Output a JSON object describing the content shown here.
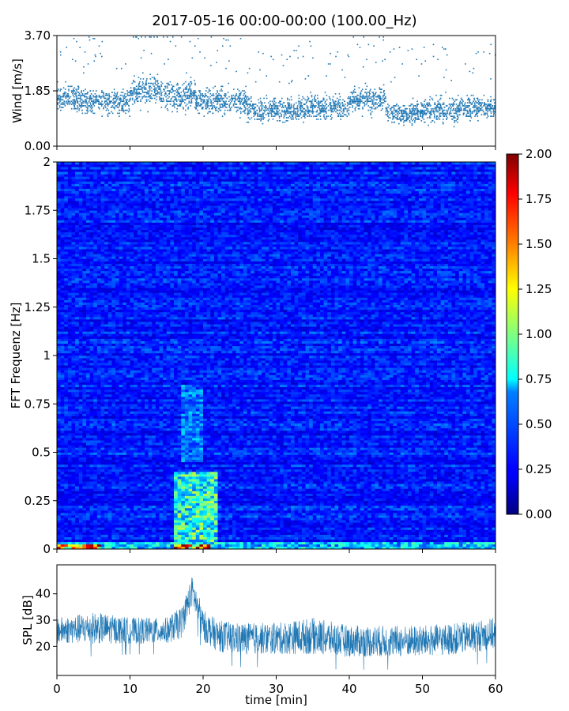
{
  "title": "2017-05-16 00:00-00:00 (100.00_Hz)",
  "chart_data": [
    {
      "type": "scatter",
      "name": "wind",
      "ylabel": "Wind [m/s]",
      "xlim": [
        0,
        60
      ],
      "ylim": [
        0,
        3.7
      ],
      "yticks": [
        "0.00",
        "1.85",
        "3.70"
      ],
      "color": "#1f77b4",
      "segments": [
        {
          "x": [
            0,
            3
          ],
          "mean": 1.6,
          "spread": 0.8
        },
        {
          "x": [
            3,
            10
          ],
          "mean": 1.5,
          "spread": 0.75
        },
        {
          "x": [
            10,
            14
          ],
          "mean": 1.9,
          "spread": 0.9
        },
        {
          "x": [
            14,
            19
          ],
          "mean": 1.7,
          "spread": 0.9
        },
        {
          "x": [
            19,
            26
          ],
          "mean": 1.5,
          "spread": 0.8
        },
        {
          "x": [
            26,
            33
          ],
          "mean": 1.2,
          "spread": 0.7
        },
        {
          "x": [
            33,
            40
          ],
          "mean": 1.3,
          "spread": 0.7
        },
        {
          "x": [
            40,
            45
          ],
          "mean": 1.6,
          "spread": 0.8
        },
        {
          "x": [
            45,
            50
          ],
          "mean": 1.1,
          "spread": 0.6
        },
        {
          "x": [
            50,
            55
          ],
          "mean": 1.2,
          "spread": 0.8
        },
        {
          "x": [
            55,
            60
          ],
          "mean": 1.3,
          "spread": 0.7
        }
      ]
    },
    {
      "type": "heatmap",
      "name": "spectrogram",
      "ylabel": "FFT Frequenz [Hz]",
      "xlim": [
        0,
        60
      ],
      "ylim": [
        0,
        2
      ],
      "yticks": [
        "0",
        "0.25",
        "0.5",
        "0.75",
        "1",
        "1.25",
        "1.5",
        "1.75",
        "2"
      ],
      "colorbar": {
        "range": [
          0,
          2
        ],
        "ticks": [
          "0.00",
          "0.25",
          "0.50",
          "0.75",
          "1.00",
          "1.25",
          "1.50",
          "1.75",
          "2.00"
        ],
        "colormap": "jet"
      },
      "background_level": 0.3,
      "hotspots": [
        {
          "x": [
            16,
            22
          ],
          "f": [
            0,
            0.4
          ],
          "level": 1.0
        },
        {
          "x": [
            17,
            20
          ],
          "f": [
            0.45,
            0.85
          ],
          "level": 0.6
        },
        {
          "x": [
            0,
            60
          ],
          "f": [
            0,
            0.04
          ],
          "level": 0.8
        },
        {
          "x": [
            0,
            6
          ],
          "f": [
            0,
            0.02
          ],
          "level": 1.9
        },
        {
          "x": [
            16,
            21
          ],
          "f": [
            0,
            0.02
          ],
          "level": 1.8
        }
      ]
    },
    {
      "type": "line",
      "name": "spl",
      "ylabel": "SPL [dB]",
      "xlabel": "time [min]",
      "xlim": [
        0,
        60
      ],
      "ylim": [
        9,
        51
      ],
      "yticks": [
        20,
        30,
        40
      ],
      "xticks": [
        0,
        10,
        20,
        30,
        40,
        50,
        60
      ],
      "color": "#1f77b4",
      "envelope": {
        "x": [
          0,
          5,
          10,
          15,
          17,
          18,
          18.5,
          19,
          20,
          22,
          25,
          30,
          35,
          40,
          45,
          50,
          55,
          60
        ],
        "mean": [
          26,
          27,
          26,
          26,
          29,
          37,
          41,
          37,
          28,
          24,
          23,
          23,
          24,
          22,
          22,
          22,
          23,
          25
        ],
        "spread": [
          5,
          6,
          5,
          5,
          6,
          6,
          6,
          6,
          6,
          6,
          6,
          6,
          7,
          6,
          6,
          6,
          6,
          6
        ]
      }
    }
  ]
}
